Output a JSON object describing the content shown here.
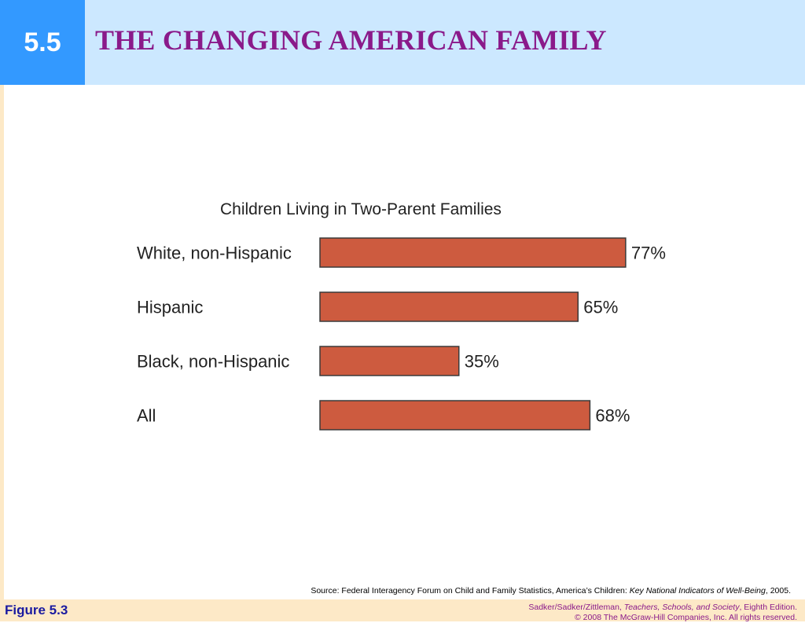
{
  "header": {
    "section_number": "5.5",
    "title": "THE CHANGING AMERICAN FAMILY"
  },
  "chart_data": {
    "type": "bar",
    "orientation": "horizontal",
    "title": "Children Living in Two-Parent Families",
    "categories": [
      "White, non-Hispanic",
      "Hispanic",
      "Black, non-Hispanic",
      "All"
    ],
    "values": [
      77,
      65,
      35,
      68
    ],
    "value_labels": [
      "77%",
      "65%",
      "35%",
      "68%"
    ],
    "xlim": [
      0,
      100
    ],
    "xlabel": "",
    "ylabel": "",
    "grid": false,
    "bar_color": "#cd5b3f"
  },
  "source": {
    "prefix": "Source: Federal Interagency Forum on Child and Family Statistics, America’s Children: ",
    "title": "Key National Indicators of Well-Being",
    "suffix": ", 2005."
  },
  "footer": {
    "figure_label": "Figure 5.3",
    "credit_authors": "Sadker/Sadker/Zittleman, ",
    "credit_book": "Teachers, Schools, and Society",
    "credit_edition": ", Eighth Edition.",
    "copyright": "© 2008 The McGraw-Hill Companies, Inc. All rights reserved."
  },
  "colors": {
    "section_box": "#3399ff",
    "title_bar": "#cce8ff",
    "title_text": "#8a1a8a",
    "footer_bg": "#fde9c7",
    "figure_label": "#1a1aa0"
  }
}
